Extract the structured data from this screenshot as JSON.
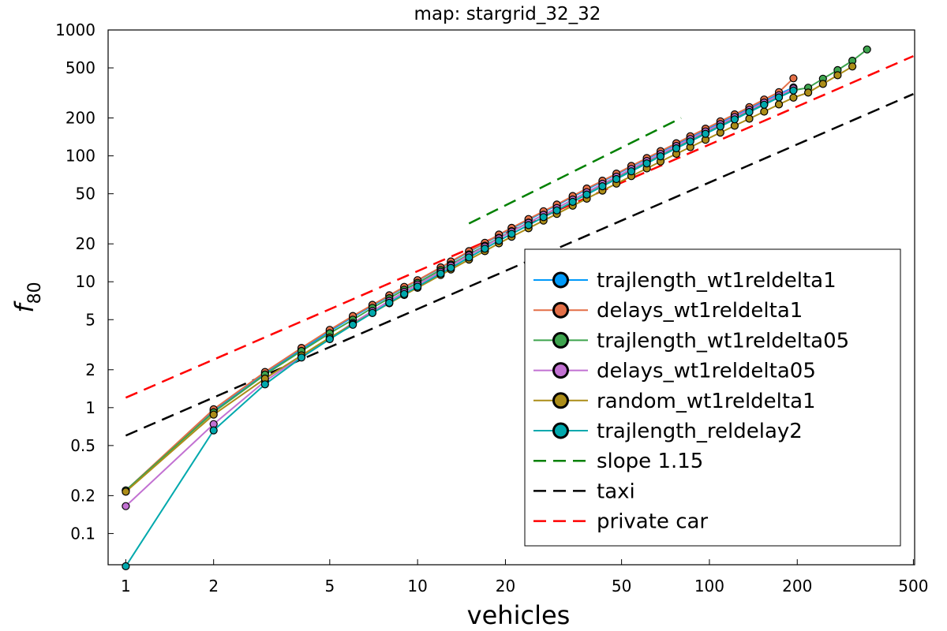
{
  "chart_data": {
    "type": "line",
    "title": "map: stargrid_32_32",
    "xlabel": "vehicles",
    "ylabel_var": "f",
    "ylabel_sub": "80",
    "x_scale": "log",
    "y_scale": "log",
    "xlim": [
      0.87,
      505
    ],
    "ylim": [
      0.0565,
      1000
    ],
    "x_ticks": [
      {
        "value": 1,
        "label": "1"
      },
      {
        "value": 2,
        "label": "2"
      },
      {
        "value": 5,
        "label": "5"
      },
      {
        "value": 10,
        "label": "10"
      },
      {
        "value": 20,
        "label": "20"
      },
      {
        "value": 50,
        "label": "50"
      },
      {
        "value": 100,
        "label": "100"
      },
      {
        "value": 200,
        "label": "200"
      },
      {
        "value": 500,
        "label": "500"
      }
    ],
    "y_ticks": [
      {
        "value": 0.1,
        "label": "0.1"
      },
      {
        "value": 0.2,
        "label": "0.2"
      },
      {
        "value": 0.5,
        "label": "0.5"
      },
      {
        "value": 1,
        "label": "1"
      },
      {
        "value": 2,
        "label": "2"
      },
      {
        "value": 5,
        "label": "5"
      },
      {
        "value": 10,
        "label": "10"
      },
      {
        "value": 20,
        "label": "20"
      },
      {
        "value": 50,
        "label": "50"
      },
      {
        "value": 100,
        "label": "100"
      },
      {
        "value": 200,
        "label": "200"
      },
      {
        "value": 500,
        "label": "500"
      },
      {
        "value": 1000,
        "label": "1000"
      }
    ],
    "grid": false,
    "legend_position": "bottom-right",
    "x": [
      1,
      2,
      3,
      4,
      5,
      6,
      7,
      8,
      9,
      10,
      12,
      13,
      15,
      17,
      19,
      21,
      24,
      27,
      30,
      34,
      38,
      43,
      48,
      54,
      61,
      68,
      77,
      86,
      97,
      109,
      122,
      137,
      154,
      173,
      194,
      218,
      245,
      275,
      309,
      347
    ],
    "series": [
      {
        "name": "trajlength_wt1reldelta1",
        "color": "#009AFA",
        "values": [
          0.22,
          0.95,
          1.88,
          2.9,
          4.05,
          5.25,
          6.45,
          7.7,
          9.0,
          10.2,
          12.9,
          14.3,
          17.3,
          20.2,
          23.4,
          26.4,
          31.0,
          35.8,
          40.4,
          47.3,
          54.0,
          62.7,
          71.3,
          82.0,
          94.6,
          107.4,
          123.8,
          140.4,
          160.9,
          183.6,
          208.4,
          237.6,
          271.1,
          309.6,
          349.4,
          null,
          null,
          null,
          null,
          null
        ]
      },
      {
        "name": "delays_wt1reldelta1",
        "color": "#E36F47",
        "values": [
          0.22,
          0.97,
          1.92,
          2.98,
          4.15,
          5.35,
          6.55,
          7.8,
          9.1,
          10.3,
          13.0,
          14.5,
          17.5,
          20.4,
          23.7,
          26.8,
          31.5,
          36.3,
          41.0,
          48.0,
          55.0,
          63.5,
          72.3,
          83.2,
          96.0,
          109.0,
          126.0,
          143.3,
          164.4,
          188.0,
          213.7,
          244.0,
          280.0,
          321.0,
          413.0,
          null,
          null,
          null,
          null,
          null
        ]
      },
      {
        "name": "trajlength_wt1reldelta05",
        "color": "#3EA44E",
        "values": [
          0.22,
          0.92,
          1.83,
          2.82,
          3.9,
          5.0,
          6.2,
          7.4,
          8.65,
          9.8,
          12.4,
          13.7,
          16.5,
          19.3,
          22.3,
          25.2,
          29.5,
          34.0,
          38.4,
          44.8,
          51.0,
          59.4,
          67.5,
          77.6,
          89.6,
          101.8,
          117.4,
          133.0,
          152.4,
          174.0,
          197.6,
          225.3,
          256.9,
          293.0,
          331.8,
          348.0,
          410.0,
          480.0,
          570.0,
          700.0
        ]
      },
      {
        "name": "delays_wt1reldelta05",
        "color": "#C271D2",
        "values": [
          0.165,
          0.74,
          1.62,
          2.55,
          3.55,
          4.7,
          5.85,
          7.05,
          8.3,
          9.5,
          12.0,
          13.4,
          16.2,
          19.0,
          22.1,
          25.0,
          29.4,
          34.0,
          38.5,
          45.0,
          51.4,
          60.0,
          68.3,
          78.7,
          91.0,
          103.6,
          119.8,
          136.0,
          156.2,
          178.7,
          203.4,
          232.3,
          265.3,
          302.9,
          343.0,
          null,
          null,
          null,
          null,
          null
        ]
      },
      {
        "name": "random_wt1reldelta1",
        "color": "#AC8D18",
        "values": [
          0.215,
          0.88,
          1.7,
          2.6,
          3.6,
          4.6,
          5.65,
          6.75,
          7.85,
          8.95,
          11.3,
          12.5,
          15.0,
          17.5,
          20.2,
          22.8,
          26.6,
          30.6,
          34.6,
          40.2,
          45.7,
          53.0,
          60.2,
          69.0,
          79.5,
          90.2,
          103.8,
          117.3,
          134.3,
          153.0,
          173.5,
          197.4,
          224.8,
          256.0,
          290.0,
          318.0,
          373.0,
          437.0,
          513.0,
          null
        ]
      },
      {
        "name": "trajlength_reldelay2",
        "color": "#00A9AD",
        "values": [
          0.055,
          0.66,
          1.53,
          2.5,
          3.5,
          4.55,
          5.65,
          6.8,
          8.0,
          9.15,
          11.6,
          12.9,
          15.6,
          18.3,
          21.2,
          24.0,
          28.2,
          32.6,
          36.9,
          43.1,
          49.3,
          57.4,
          65.4,
          75.4,
          87.2,
          99.3,
          114.8,
          130.3,
          149.7,
          171.3,
          195.1,
          223.0,
          254.8,
          291.1,
          330.0,
          null,
          null,
          null,
          null,
          null
        ]
      }
    ],
    "reference_lines": [
      {
        "name": "slope 1.15",
        "color": "#008000",
        "x": [
          15,
          80
        ],
        "y": [
          29,
          200
        ]
      },
      {
        "name": "taxi",
        "color": "#000000",
        "x": [
          1,
          500
        ],
        "y": [
          0.6,
          310
        ]
      },
      {
        "name": "private car",
        "color": "#FF0000",
        "x": [
          1,
          500
        ],
        "y": [
          1.2,
          620
        ]
      }
    ]
  }
}
